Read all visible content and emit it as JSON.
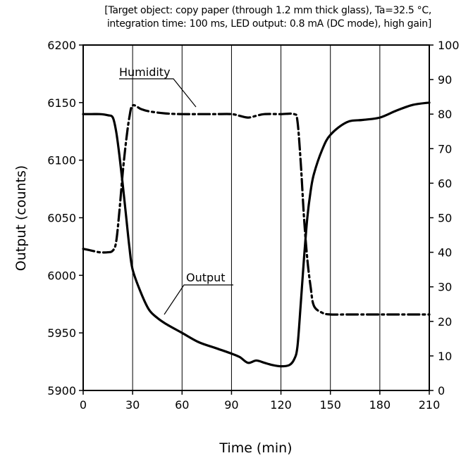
{
  "chart_data": {
    "type": "line",
    "subtitle_lines": [
      "[Target object: copy paper (through 1.2 mm thick glass), Ta=32.5 °C,",
      "integration time: 100 ms, LED output: 0.8 mA (DC mode), high gain]"
    ],
    "xlabel": "Time (min)",
    "ylabel": "Output (counts)",
    "y2label": "",
    "xlim": [
      0,
      210
    ],
    "ylim": [
      5900,
      6200
    ],
    "y2lim": [
      0,
      100
    ],
    "x_ticks": [
      0,
      30,
      60,
      90,
      120,
      150,
      180,
      210
    ],
    "y_ticks": [
      5900,
      5950,
      6000,
      6050,
      6100,
      6150,
      6200
    ],
    "y2_ticks": [
      0,
      10,
      20,
      30,
      40,
      50,
      60,
      70,
      80,
      90,
      100
    ],
    "grid": "vertical",
    "series": [
      {
        "name": "Humidity",
        "axis": "right",
        "style": "dash-dot",
        "color": "#000000",
        "x": [
          0,
          5,
          10,
          15,
          18,
          20,
          22,
          24,
          26,
          28,
          30,
          35,
          40,
          50,
          60,
          70,
          80,
          90,
          95,
          100,
          105,
          110,
          120,
          128,
          130,
          132,
          134,
          136,
          138,
          140,
          145,
          150,
          160,
          180,
          210
        ],
        "y": [
          41,
          40.5,
          40,
          40,
          40.5,
          43,
          52,
          63,
          72,
          79,
          82.5,
          81.5,
          80.8,
          80.2,
          80,
          80,
          80,
          80,
          79.5,
          79,
          79.5,
          80,
          80,
          80,
          78,
          66,
          50,
          38,
          30,
          24.5,
          22.5,
          22,
          22,
          22,
          22
        ]
      },
      {
        "name": "Output",
        "axis": "left",
        "style": "solid",
        "color": "#000000",
        "x": [
          0,
          5,
          10,
          15,
          18,
          20,
          22,
          24,
          26,
          28,
          30,
          35,
          40,
          45,
          50,
          60,
          70,
          80,
          90,
          95,
          100,
          105,
          110,
          115,
          120,
          125,
          128,
          130,
          132,
          134,
          136,
          138,
          140,
          145,
          150,
          160,
          170,
          180,
          190,
          200,
          210
        ],
        "y": [
          6140,
          6140,
          6140,
          6139,
          6137,
          6125,
          6104,
          6079,
          6052,
          6025,
          6005,
          5985,
          5970,
          5963,
          5958,
          5950,
          5942,
          5937,
          5932,
          5929,
          5924,
          5926,
          5924,
          5922,
          5921,
          5922,
          5927,
          5938,
          5975,
          6015,
          6050,
          6073,
          6088,
          6109,
          6122,
          6133,
          6135,
          6137,
          6143,
          6148,
          6150
        ]
      }
    ],
    "annotations": [
      "Humidity",
      "Output"
    ]
  }
}
